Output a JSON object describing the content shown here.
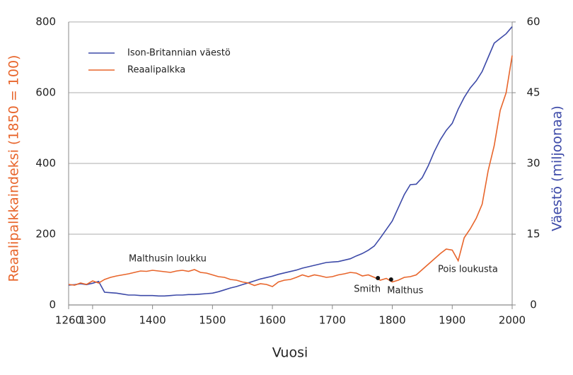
{
  "chart_data": {
    "type": "line",
    "xlabel": "Vuosi",
    "ylabel": "Reaalipalkkaindeksi (1850 = 100)",
    "y2label": "Väestö (miljoonaa)",
    "xlim": [
      1260,
      2000
    ],
    "xticks": [
      1260,
      1300,
      1400,
      1500,
      1600,
      1700,
      1800,
      1900,
      2000
    ],
    "ylim": [
      0,
      800
    ],
    "yticks": [
      0,
      200,
      400,
      600,
      800
    ],
    "y2lim": [
      0,
      60
    ],
    "y2ticks": [
      0,
      15,
      30,
      45,
      60
    ],
    "grid": true,
    "legend": "upper left",
    "x": [
      1260,
      1270,
      1280,
      1290,
      1300,
      1310,
      1320,
      1330,
      1340,
      1350,
      1360,
      1370,
      1380,
      1390,
      1400,
      1410,
      1420,
      1430,
      1440,
      1450,
      1460,
      1470,
      1480,
      1490,
      1500,
      1510,
      1520,
      1530,
      1540,
      1550,
      1560,
      1570,
      1580,
      1590,
      1600,
      1610,
      1620,
      1630,
      1640,
      1650,
      1660,
      1670,
      1680,
      1690,
      1700,
      1710,
      1720,
      1730,
      1740,
      1750,
      1760,
      1770,
      1780,
      1790,
      1800,
      1810,
      1820,
      1830,
      1840,
      1850,
      1860,
      1870,
      1880,
      1890,
      1900,
      1910,
      1920,
      1930,
      1940,
      1950,
      1960,
      1970,
      1980,
      1990,
      2000
    ],
    "series": [
      {
        "name": "Ison-Britannian väestö",
        "color": "#3d4aa8",
        "axis": "y2",
        "values": [
          4.2,
          4.3,
          4.5,
          4.3,
          4.6,
          5.0,
          2.7,
          2.6,
          2.5,
          2.3,
          2.1,
          2.1,
          2.0,
          2.0,
          2.0,
          1.9,
          1.9,
          2.0,
          2.1,
          2.1,
          2.2,
          2.2,
          2.3,
          2.4,
          2.5,
          2.8,
          3.2,
          3.6,
          3.9,
          4.3,
          4.7,
          5.1,
          5.5,
          5.8,
          6.1,
          6.5,
          6.8,
          7.1,
          7.4,
          7.8,
          8.1,
          8.4,
          8.7,
          9.0,
          9.1,
          9.2,
          9.5,
          9.8,
          10.4,
          10.9,
          11.6,
          12.5,
          14.2,
          16.0,
          17.8,
          20.6,
          23.4,
          25.5,
          25.6,
          27.0,
          29.5,
          32.5,
          35.0,
          37.0,
          38.5,
          41.5,
          44.0,
          46.0,
          47.5,
          49.5,
          52.5,
          55.5,
          56.5,
          57.5,
          59.0
        ]
      },
      {
        "name": "Reaalipalkka",
        "color": "#e8652b",
        "values": [
          58,
          56,
          62,
          58,
          68,
          62,
          72,
          78,
          82,
          85,
          88,
          92,
          96,
          95,
          98,
          96,
          94,
          92,
          96,
          98,
          95,
          100,
          92,
          90,
          85,
          80,
          78,
          72,
          70,
          65,
          62,
          55,
          60,
          58,
          52,
          65,
          70,
          72,
          78,
          85,
          80,
          85,
          82,
          78,
          80,
          85,
          88,
          92,
          90,
          82,
          85,
          78,
          70,
          75,
          65,
          70,
          78,
          80,
          85,
          100,
          115,
          130,
          145,
          158,
          155,
          125,
          190,
          215,
          245,
          285,
          380,
          450,
          550,
          600,
          705
        ]
      }
    ],
    "points": [
      {
        "label": "Smith",
        "x": 1776,
        "y": 76
      },
      {
        "label": "Malthus",
        "x": 1798,
        "y": 72
      }
    ],
    "annotations": [
      "Malthusin loukku",
      "Pois loukusta"
    ]
  }
}
